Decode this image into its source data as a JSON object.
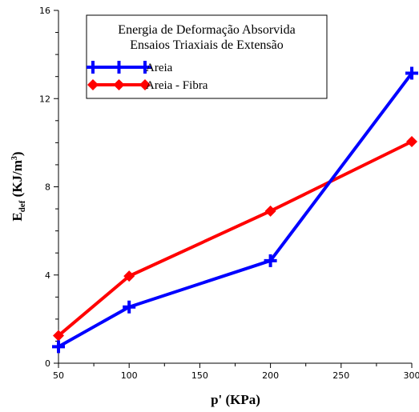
{
  "chart_data": {
    "type": "line",
    "title_lines": [
      "Energia de Deformação Absorvida",
      "Ensaios Triaxiais de Extensão"
    ],
    "xlabel": "p' (KPa)",
    "ylabel_main": "E",
    "ylabel_sub": "def",
    "ylabel_rest": " (KJ/m",
    "ylabel_sup": "3",
    "ylabel_end": ")",
    "xlim": [
      50,
      300
    ],
    "ylim": [
      0,
      16
    ],
    "x_major_ticks": [
      "50",
      "100",
      "150",
      "200",
      "250",
      "300"
    ],
    "x_minor_step": 25,
    "y_major_ticks": [
      "0",
      "4",
      "8",
      "12",
      "16"
    ],
    "y_minor_step": 1,
    "grid": false,
    "legend_position": "top-left",
    "series": [
      {
        "name": "Areia",
        "color": "#0000ff",
        "marker": "plus",
        "x": [
          50,
          100,
          200,
          300
        ],
        "y": [
          0.75,
          2.55,
          4.65,
          13.15
        ]
      },
      {
        "name": "Areia - Fibra",
        "color": "#ff0000",
        "marker": "diamond",
        "x": [
          50,
          100,
          200,
          300
        ],
        "y": [
          1.25,
          3.95,
          6.9,
          10.05
        ]
      }
    ]
  }
}
